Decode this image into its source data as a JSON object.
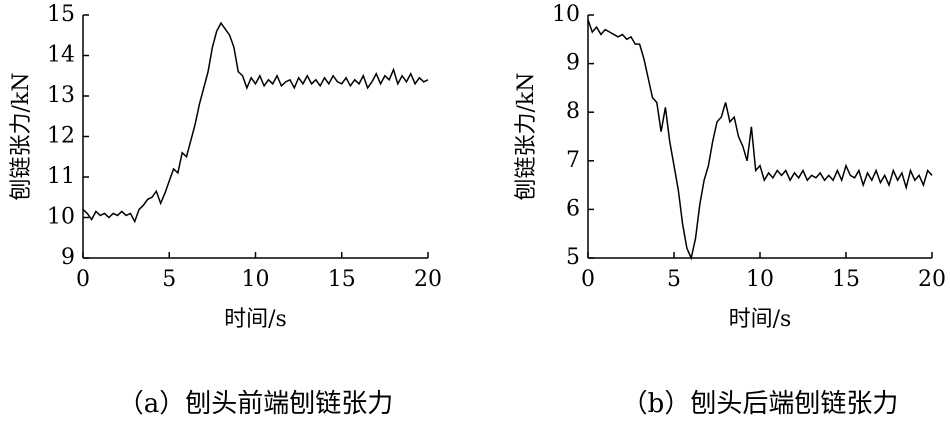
{
  "chart_data": [
    {
      "type": "line",
      "title": "（a）刨头前端刨链张力",
      "xlabel": "时间/s",
      "ylabel": "刨链张力/kN",
      "xlim": [
        0,
        20
      ],
      "ylim": [
        9,
        15
      ],
      "xticks": [
        0,
        5,
        10,
        15,
        20
      ],
      "yticks": [
        9,
        10,
        11,
        12,
        13,
        14,
        15
      ],
      "color": "#000000",
      "x": [
        0,
        0.25,
        0.5,
        0.75,
        1,
        1.25,
        1.5,
        1.75,
        2,
        2.25,
        2.5,
        2.75,
        3,
        3.25,
        3.5,
        3.75,
        4,
        4.25,
        4.5,
        4.75,
        5,
        5.25,
        5.5,
        5.75,
        6,
        6.25,
        6.5,
        6.75,
        7,
        7.25,
        7.5,
        7.75,
        8,
        8.25,
        8.5,
        8.75,
        9,
        9.25,
        9.5,
        9.75,
        10,
        10.25,
        10.5,
        10.75,
        11,
        11.25,
        11.5,
        11.75,
        12,
        12.25,
        12.5,
        12.75,
        13,
        13.25,
        13.5,
        13.75,
        14,
        14.25,
        14.5,
        14.75,
        15,
        15.25,
        15.5,
        15.75,
        16,
        16.25,
        16.5,
        16.75,
        17,
        17.25,
        17.5,
        17.75,
        18,
        18.25,
        18.5,
        18.75,
        19,
        19.25,
        19.5,
        19.75,
        20
      ],
      "values": [
        10.2,
        10.1,
        9.95,
        10.15,
        10.05,
        10.1,
        10.0,
        10.1,
        10.05,
        10.15,
        10.05,
        10.1,
        9.9,
        10.2,
        10.3,
        10.45,
        10.5,
        10.65,
        10.35,
        10.6,
        10.9,
        11.2,
        11.1,
        11.6,
        11.5,
        11.9,
        12.3,
        12.8,
        13.2,
        13.6,
        14.2,
        14.6,
        14.8,
        14.65,
        14.5,
        14.2,
        13.6,
        13.5,
        13.2,
        13.45,
        13.3,
        13.5,
        13.25,
        13.4,
        13.3,
        13.5,
        13.25,
        13.35,
        13.4,
        13.2,
        13.45,
        13.3,
        13.5,
        13.3,
        13.4,
        13.25,
        13.45,
        13.3,
        13.5,
        13.35,
        13.3,
        13.45,
        13.25,
        13.4,
        13.3,
        13.5,
        13.2,
        13.35,
        13.55,
        13.3,
        13.5,
        13.4,
        13.65,
        13.3,
        13.5,
        13.35,
        13.55,
        13.3,
        13.45,
        13.35,
        13.4
      ]
    },
    {
      "type": "line",
      "title": "（b）刨头后端刨链张力",
      "xlabel": "时间/s",
      "ylabel": "刨链张力/kN",
      "xlim": [
        0,
        20
      ],
      "ylim": [
        5,
        10
      ],
      "xticks": [
        0,
        5,
        10,
        15,
        20
      ],
      "yticks": [
        5,
        6,
        7,
        8,
        9,
        10
      ],
      "color": "#000000",
      "x": [
        0,
        0.25,
        0.5,
        0.75,
        1,
        1.25,
        1.5,
        1.75,
        2,
        2.25,
        2.5,
        2.75,
        3,
        3.25,
        3.5,
        3.75,
        4,
        4.25,
        4.5,
        4.75,
        5,
        5.25,
        5.5,
        5.75,
        6,
        6.25,
        6.5,
        6.75,
        7,
        7.25,
        7.5,
        7.75,
        8,
        8.25,
        8.5,
        8.75,
        9,
        9.25,
        9.5,
        9.75,
        10,
        10.25,
        10.5,
        10.75,
        11,
        11.25,
        11.5,
        11.75,
        12,
        12.25,
        12.5,
        12.75,
        13,
        13.25,
        13.5,
        13.75,
        14,
        14.25,
        14.5,
        14.75,
        15,
        15.25,
        15.5,
        15.75,
        16,
        16.25,
        16.5,
        16.75,
        17,
        17.25,
        17.5,
        17.75,
        18,
        18.25,
        18.5,
        18.75,
        19,
        19.25,
        19.5,
        19.75,
        20
      ],
      "values": [
        9.9,
        9.65,
        9.75,
        9.6,
        9.7,
        9.65,
        9.6,
        9.55,
        9.6,
        9.5,
        9.55,
        9.4,
        9.4,
        9.1,
        8.7,
        8.3,
        8.2,
        7.6,
        8.1,
        7.4,
        6.9,
        6.4,
        5.7,
        5.2,
        5.0,
        5.4,
        6.1,
        6.6,
        6.9,
        7.4,
        7.8,
        7.9,
        8.2,
        7.8,
        7.9,
        7.5,
        7.3,
        7.0,
        7.7,
        6.8,
        6.9,
        6.6,
        6.75,
        6.65,
        6.8,
        6.7,
        6.8,
        6.6,
        6.75,
        6.65,
        6.8,
        6.6,
        6.7,
        6.65,
        6.75,
        6.6,
        6.7,
        6.6,
        6.8,
        6.6,
        6.9,
        6.7,
        6.65,
        6.8,
        6.5,
        6.75,
        6.6,
        6.8,
        6.55,
        6.7,
        6.5,
        6.8,
        6.6,
        6.75,
        6.45,
        6.8,
        6.6,
        6.7,
        6.5,
        6.8,
        6.7
      ]
    }
  ]
}
